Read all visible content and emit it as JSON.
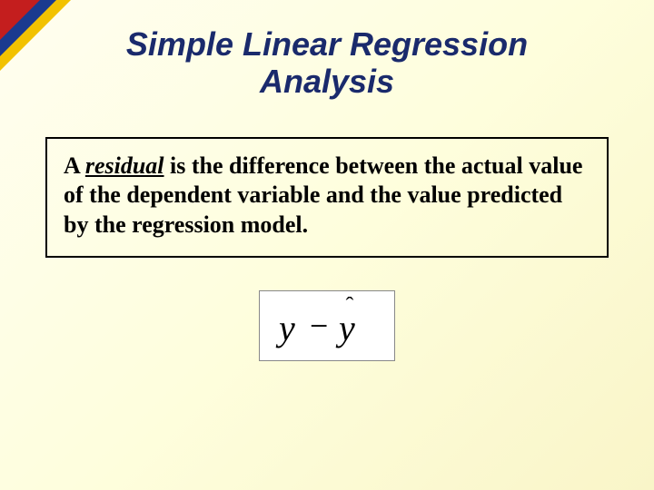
{
  "slide": {
    "title_line1": "Simple Linear Regression",
    "title_line2": "Analysis",
    "title_color": "#1a2a6c",
    "title_fontsize": 36,
    "background_gradient": [
      "#fffef0",
      "#fefedd",
      "#f9f5c8"
    ]
  },
  "corner": {
    "outer_color": "#f2c200",
    "middle_color": "#1a3a8f",
    "inner_color": "#c41e1e"
  },
  "definition": {
    "lead": "A ",
    "keyword": "residual",
    "rest": " is the difference between the actual value of the dependent variable and the value predicted by the regression model.",
    "border_color": "#000000",
    "fontsize": 26
  },
  "formula": {
    "expression": "y − ŷ",
    "y_label": "y",
    "minus": "−",
    "yhat_label": "y",
    "hat_symbol": "ˆ",
    "box_background": "#ffffff",
    "box_border": "#888888",
    "text_color": "#000000"
  }
}
